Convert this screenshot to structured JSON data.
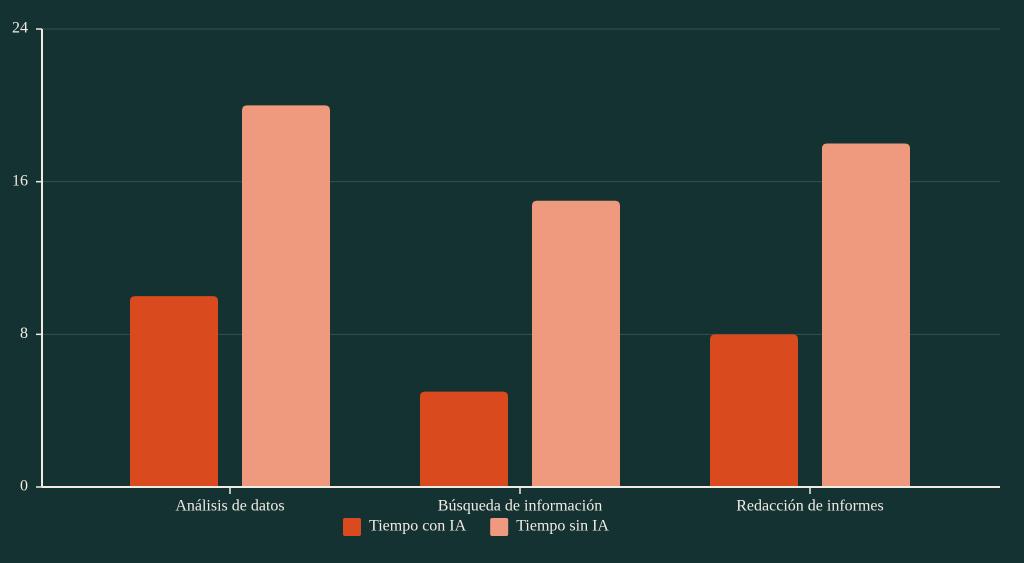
{
  "chart_data": {
    "type": "bar",
    "categories": [
      "Análisis de datos",
      "Búsqueda de información",
      "Redacción de informes"
    ],
    "series": [
      {
        "name": "Tiempo con IA",
        "color": "#d94a1e",
        "values": [
          10,
          5,
          8
        ]
      },
      {
        "name": "Tiempo sin IA",
        "color": "#ef9a7e",
        "values": [
          20,
          15,
          18
        ]
      }
    ],
    "ylim": [
      0,
      24
    ],
    "yticks": [
      0,
      8,
      16,
      24
    ],
    "grid": true,
    "legend": "bottom"
  }
}
